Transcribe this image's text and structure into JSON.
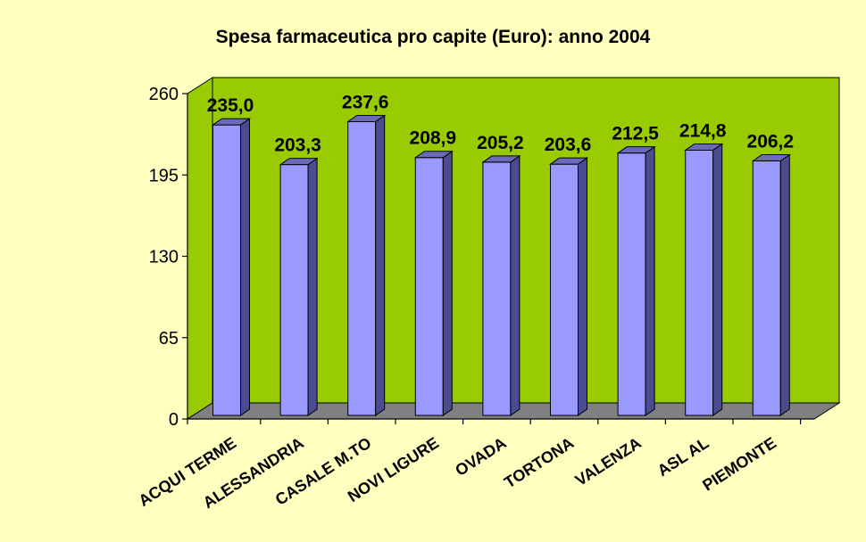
{
  "chart_data": {
    "type": "bar",
    "title": "Spesa farmaceutica pro capite (Euro): anno 2004",
    "xlabel": "",
    "ylabel": "",
    "categories": [
      "ACQUI TERME",
      "ALESSANDRIA",
      "CASALE M.TO",
      "NOVI LIGURE",
      "OVADA",
      "TORTONA",
      "VALENZA",
      "ASL AL",
      "PIEMONTE"
    ],
    "values": [
      235.0,
      203.3,
      237.6,
      208.9,
      205.2,
      203.6,
      212.5,
      214.8,
      206.2
    ],
    "data_labels": [
      "235,0",
      "203,3",
      "237,6",
      "208,9",
      "205,2",
      "203,6",
      "212,5",
      "214,8",
      "206,2"
    ],
    "ylim": [
      0,
      260
    ],
    "yticks": [
      0,
      65,
      130,
      195,
      260
    ],
    "grid": false,
    "legend": "none",
    "style": "3d-column",
    "colors": {
      "background": "#ffffc0",
      "plot_wall": "#99cc00",
      "floor": "#808080",
      "bar_front": "#9999ff",
      "bar_side": "#4b4b8f",
      "bar_top": "#6a6ab8",
      "text": "#000000"
    }
  }
}
